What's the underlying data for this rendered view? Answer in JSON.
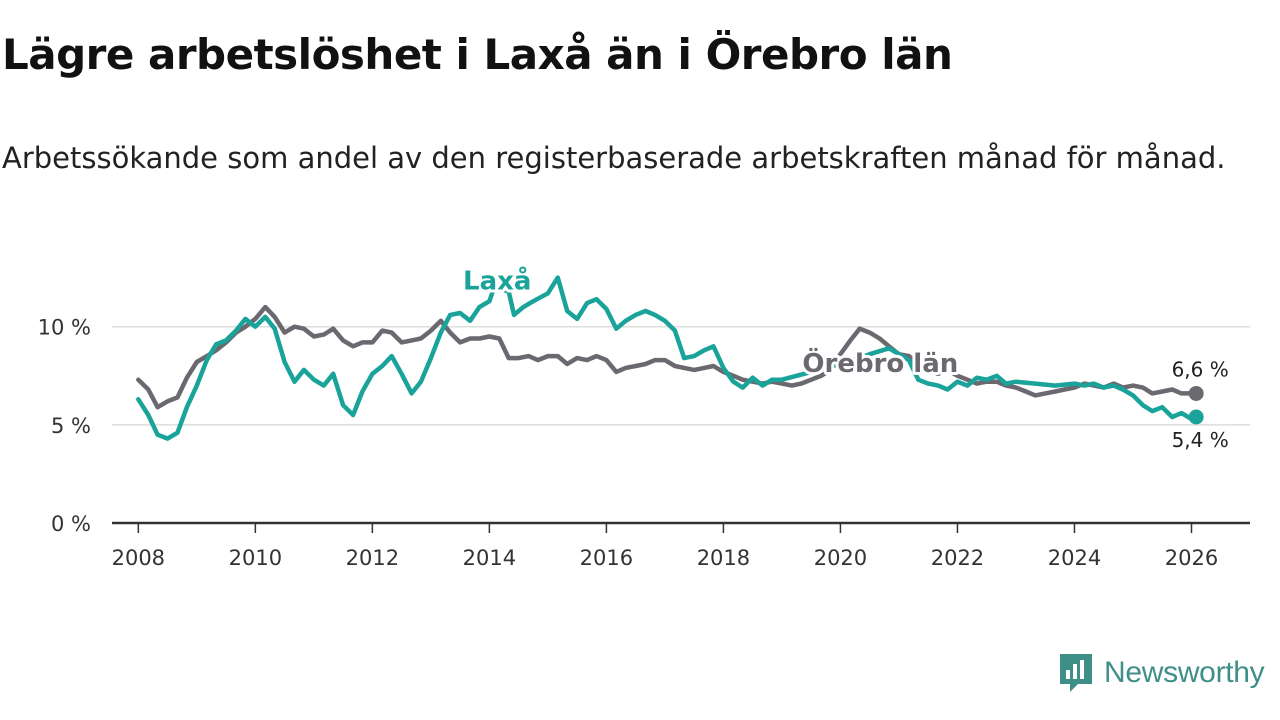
{
  "title": "Lägre arbetslöshet i Laxå än i Örebro län",
  "subtitle": "Arbetssökande som andel av den registerbaserade arbetskraften månad för månad.",
  "brand": {
    "name": "Newsworthy",
    "color": "#3f8f89",
    "icon": "newsworthy-logo-icon"
  },
  "colors": {
    "laxa": "#1aa39a",
    "orebro": "#6b6870",
    "grid": "#dddddd",
    "axis": "#333333"
  },
  "chart_data": {
    "type": "line",
    "title": "Lägre arbetslöshet i Laxå än i Örebro län",
    "xlabel": "",
    "ylabel": "",
    "xlim": [
      2007.55,
      2027.0
    ],
    "ylim": [
      0,
      13.5
    ],
    "y_ticks": [
      0,
      5,
      10
    ],
    "y_tick_labels": [
      "0 %",
      "5 %",
      "10 %"
    ],
    "x_ticks": [
      2008,
      2010,
      2012,
      2014,
      2016,
      2018,
      2020,
      2022,
      2024,
      2026
    ],
    "x_tick_labels": [
      "2008",
      "2010",
      "2012",
      "2014",
      "2016",
      "2018",
      "2020",
      "2022",
      "2024",
      "2026"
    ],
    "grid": true,
    "series": [
      {
        "name": "Laxå",
        "label": "Laxå",
        "color": "#1aa39a",
        "end_label": "5,4 %",
        "points": [
          [
            2008.0,
            6.3
          ],
          [
            2008.17,
            5.5
          ],
          [
            2008.33,
            4.5
          ],
          [
            2008.5,
            4.3
          ],
          [
            2008.67,
            4.6
          ],
          [
            2008.83,
            5.9
          ],
          [
            2009.0,
            7.0
          ],
          [
            2009.17,
            8.3
          ],
          [
            2009.33,
            9.1
          ],
          [
            2009.5,
            9.3
          ],
          [
            2009.67,
            9.8
          ],
          [
            2009.83,
            10.4
          ],
          [
            2010.0,
            10.0
          ],
          [
            2010.17,
            10.5
          ],
          [
            2010.33,
            9.9
          ],
          [
            2010.5,
            8.2
          ],
          [
            2010.67,
            7.2
          ],
          [
            2010.83,
            7.8
          ],
          [
            2011.0,
            7.3
          ],
          [
            2011.17,
            7.0
          ],
          [
            2011.33,
            7.6
          ],
          [
            2011.5,
            6.0
          ],
          [
            2011.67,
            5.5
          ],
          [
            2011.83,
            6.7
          ],
          [
            2012.0,
            7.6
          ],
          [
            2012.17,
            8.0
          ],
          [
            2012.33,
            8.5
          ],
          [
            2012.5,
            7.6
          ],
          [
            2012.67,
            6.6
          ],
          [
            2012.83,
            7.2
          ],
          [
            2013.0,
            8.4
          ],
          [
            2013.17,
            9.7
          ],
          [
            2013.33,
            10.6
          ],
          [
            2013.5,
            10.7
          ],
          [
            2013.67,
            10.3
          ],
          [
            2013.83,
            11.0
          ],
          [
            2014.0,
            11.3
          ],
          [
            2014.08,
            12.0
          ],
          [
            2014.33,
            11.8
          ],
          [
            2014.42,
            10.6
          ],
          [
            2014.58,
            11.0
          ],
          [
            2014.75,
            11.3
          ],
          [
            2015.0,
            11.7
          ],
          [
            2015.17,
            12.5
          ],
          [
            2015.33,
            10.8
          ],
          [
            2015.5,
            10.4
          ],
          [
            2015.67,
            11.2
          ],
          [
            2015.83,
            11.4
          ],
          [
            2016.0,
            10.9
          ],
          [
            2016.17,
            9.9
          ],
          [
            2016.33,
            10.3
          ],
          [
            2016.5,
            10.6
          ],
          [
            2016.67,
            10.8
          ],
          [
            2016.83,
            10.6
          ],
          [
            2017.0,
            10.3
          ],
          [
            2017.17,
            9.8
          ],
          [
            2017.33,
            8.4
          ],
          [
            2017.5,
            8.5
          ],
          [
            2017.67,
            8.8
          ],
          [
            2017.83,
            9.0
          ],
          [
            2018.0,
            7.9
          ],
          [
            2018.17,
            7.2
          ],
          [
            2018.33,
            6.9
          ],
          [
            2018.5,
            7.4
          ],
          [
            2018.67,
            7.0
          ],
          [
            2018.83,
            7.3
          ],
          [
            2019.0,
            7.3
          ],
          [
            2019.5,
            7.7
          ],
          [
            2019.75,
            7.9
          ],
          [
            2020.0,
            8.1
          ],
          [
            2020.5,
            8.6
          ],
          [
            2020.83,
            8.9
          ],
          [
            2021.0,
            8.6
          ],
          [
            2021.17,
            8.3
          ],
          [
            2021.33,
            7.3
          ],
          [
            2021.5,
            7.1
          ],
          [
            2021.67,
            7.0
          ],
          [
            2021.83,
            6.8
          ],
          [
            2022.0,
            7.2
          ],
          [
            2022.17,
            7.0
          ],
          [
            2022.33,
            7.4
          ],
          [
            2022.5,
            7.3
          ],
          [
            2022.67,
            7.5
          ],
          [
            2022.83,
            7.1
          ],
          [
            2023.0,
            7.2
          ],
          [
            2023.33,
            7.1
          ],
          [
            2023.67,
            7.0
          ],
          [
            2024.0,
            7.1
          ],
          [
            2024.17,
            7.0
          ],
          [
            2024.33,
            7.1
          ],
          [
            2024.5,
            6.9
          ],
          [
            2024.67,
            7.0
          ],
          [
            2024.83,
            6.8
          ],
          [
            2025.0,
            6.5
          ],
          [
            2025.17,
            6.0
          ],
          [
            2025.33,
            5.7
          ],
          [
            2025.5,
            5.9
          ],
          [
            2025.67,
            5.4
          ],
          [
            2025.83,
            5.6
          ],
          [
            2026.0,
            5.3
          ],
          [
            2026.08,
            5.4
          ]
        ]
      },
      {
        "name": "Örebro län",
        "label": "Örebro län",
        "color": "#6b6870",
        "end_label": "6,6 %",
        "points": [
          [
            2008.0,
            7.3
          ],
          [
            2008.17,
            6.8
          ],
          [
            2008.33,
            5.9
          ],
          [
            2008.5,
            6.2
          ],
          [
            2008.67,
            6.4
          ],
          [
            2008.83,
            7.4
          ],
          [
            2009.0,
            8.2
          ],
          [
            2009.17,
            8.5
          ],
          [
            2009.33,
            8.8
          ],
          [
            2009.5,
            9.2
          ],
          [
            2009.67,
            9.7
          ],
          [
            2009.83,
            10.0
          ],
          [
            2010.0,
            10.4
          ],
          [
            2010.17,
            11.0
          ],
          [
            2010.33,
            10.5
          ],
          [
            2010.5,
            9.7
          ],
          [
            2010.67,
            10.0
          ],
          [
            2010.83,
            9.9
          ],
          [
            2011.0,
            9.5
          ],
          [
            2011.17,
            9.6
          ],
          [
            2011.33,
            9.9
          ],
          [
            2011.5,
            9.3
          ],
          [
            2011.67,
            9.0
          ],
          [
            2011.83,
            9.2
          ],
          [
            2012.0,
            9.2
          ],
          [
            2012.17,
            9.8
          ],
          [
            2012.33,
            9.7
          ],
          [
            2012.5,
            9.2
          ],
          [
            2012.67,
            9.3
          ],
          [
            2012.83,
            9.4
          ],
          [
            2013.0,
            9.8
          ],
          [
            2013.17,
            10.3
          ],
          [
            2013.33,
            9.7
          ],
          [
            2013.5,
            9.2
          ],
          [
            2013.67,
            9.4
          ],
          [
            2013.83,
            9.4
          ],
          [
            2014.0,
            9.5
          ],
          [
            2014.17,
            9.4
          ],
          [
            2014.33,
            8.4
          ],
          [
            2014.5,
            8.4
          ],
          [
            2014.67,
            8.5
          ],
          [
            2014.83,
            8.3
          ],
          [
            2015.0,
            8.5
          ],
          [
            2015.17,
            8.5
          ],
          [
            2015.33,
            8.1
          ],
          [
            2015.5,
            8.4
          ],
          [
            2015.67,
            8.3
          ],
          [
            2015.83,
            8.5
          ],
          [
            2016.0,
            8.3
          ],
          [
            2016.17,
            7.7
          ],
          [
            2016.33,
            7.9
          ],
          [
            2016.5,
            8.0
          ],
          [
            2016.67,
            8.1
          ],
          [
            2016.83,
            8.3
          ],
          [
            2017.0,
            8.3
          ],
          [
            2017.17,
            8.0
          ],
          [
            2017.33,
            7.9
          ],
          [
            2017.5,
            7.8
          ],
          [
            2017.67,
            7.9
          ],
          [
            2017.83,
            8.0
          ],
          [
            2018.0,
            7.7
          ],
          [
            2018.17,
            7.5
          ],
          [
            2018.33,
            7.3
          ],
          [
            2018.5,
            7.2
          ],
          [
            2018.67,
            7.1
          ],
          [
            2018.83,
            7.2
          ],
          [
            2019.0,
            7.1
          ],
          [
            2019.17,
            7.0
          ],
          [
            2019.33,
            7.1
          ],
          [
            2019.5,
            7.3
          ],
          [
            2019.67,
            7.5
          ],
          [
            2019.83,
            7.8
          ],
          [
            2020.0,
            8.6
          ],
          [
            2020.17,
            9.3
          ],
          [
            2020.33,
            9.9
          ],
          [
            2020.5,
            9.7
          ],
          [
            2020.67,
            9.4
          ],
          [
            2020.83,
            9.0
          ],
          [
            2021.0,
            8.6
          ],
          [
            2021.17,
            8.5
          ],
          [
            2021.33,
            8.1
          ],
          [
            2021.5,
            7.8
          ],
          [
            2021.67,
            7.6
          ],
          [
            2021.83,
            7.8
          ],
          [
            2022.0,
            7.5
          ],
          [
            2022.17,
            7.3
          ],
          [
            2022.33,
            7.1
          ],
          [
            2022.5,
            7.2
          ],
          [
            2022.67,
            7.2
          ],
          [
            2022.83,
            7.0
          ],
          [
            2023.0,
            6.9
          ],
          [
            2023.17,
            6.7
          ],
          [
            2023.33,
            6.5
          ],
          [
            2023.5,
            6.6
          ],
          [
            2023.67,
            6.7
          ],
          [
            2023.83,
            6.8
          ],
          [
            2024.0,
            6.9
          ],
          [
            2024.17,
            7.1
          ],
          [
            2024.33,
            7.0
          ],
          [
            2024.5,
            6.9
          ],
          [
            2024.67,
            7.1
          ],
          [
            2024.83,
            6.9
          ],
          [
            2025.0,
            7.0
          ],
          [
            2025.17,
            6.9
          ],
          [
            2025.33,
            6.6
          ],
          [
            2025.5,
            6.7
          ],
          [
            2025.67,
            6.8
          ],
          [
            2025.83,
            6.6
          ],
          [
            2026.0,
            6.6
          ],
          [
            2026.08,
            6.6
          ]
        ]
      }
    ]
  }
}
